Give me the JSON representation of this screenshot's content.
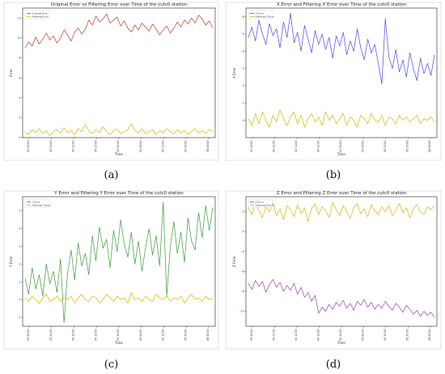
{
  "chart_data": [
    {
      "type": "line",
      "title": "Original Error vs Filtering Error over Time of the cutc0 station",
      "xlabel": "Time",
      "ylabel": "Error",
      "panel_label": "(a)",
      "x_ticks": [
        "03 20:00",
        "03 21:00",
        "04 12:00",
        "04 12:00",
        "04 20:00",
        "05 00:00",
        "05 12:00",
        "05 20:00",
        "06 00:00"
      ],
      "ylim": [
        0,
        13
      ],
      "y_ticks": [
        0,
        2,
        4,
        6,
        8,
        10,
        12
      ],
      "grid": false,
      "legend": "top-left",
      "series": [
        {
          "name": "Original Error",
          "color": "#c0392b",
          "values": [
            9.0,
            9.6,
            9.2,
            10.1,
            9.4,
            9.9,
            10.5,
            9.8,
            10.2,
            9.5,
            10.0,
            10.8,
            10.3,
            9.7,
            10.6,
            11.0,
            10.4,
            10.9,
            11.8,
            11.3,
            12.2,
            11.6,
            11.9,
            12.4,
            11.5,
            11.8,
            12.1,
            11.2,
            11.7,
            11.0,
            10.6,
            11.3,
            10.8,
            11.5,
            11.1,
            10.7,
            11.4,
            10.9,
            10.3,
            10.8,
            11.2,
            10.5,
            11.0,
            11.6,
            11.1,
            11.8,
            11.4,
            12.0,
            11.5,
            12.3,
            11.9,
            11.3,
            11.7,
            11.0
          ]
        },
        {
          "name": "Filtering Error",
          "color": "#d4b800",
          "values": [
            0.6,
            0.3,
            0.8,
            0.5,
            0.9,
            0.4,
            0.7,
            0.2,
            0.6,
            0.8,
            0.4,
            1.0,
            0.5,
            0.7,
            0.3,
            0.9,
            0.6,
            1.3,
            0.7,
            0.4,
            0.8,
            0.5,
            1.1,
            0.6,
            0.3,
            0.7,
            0.9,
            0.4,
            0.6,
            0.8,
            1.4,
            0.7,
            0.5,
            0.9,
            0.4,
            0.6,
            0.8,
            0.3,
            0.7,
            0.5,
            0.9,
            0.6,
            0.4,
            0.8,
            0.5,
            0.7,
            0.3,
            0.6,
            0.9,
            0.5,
            0.7,
            0.4,
            0.8,
            0.6
          ]
        }
      ]
    },
    {
      "type": "line",
      "title": "X Error and Filtering X Error over Time of the cutc0 station",
      "xlabel": "Time",
      "ylabel": "X Error",
      "panel_label": "(b)",
      "x_ticks": [
        "03 20:00",
        "03 21:00",
        "04 12:00",
        "04 12:00",
        "04 20:00",
        "05 00:00",
        "05 12:00",
        "05 20:00",
        "06 00:00"
      ],
      "ylim": [
        -1,
        6.5
      ],
      "y_ticks": [
        0,
        1,
        2,
        3,
        4,
        5,
        6
      ],
      "grid": false,
      "legend": "top-left",
      "series": [
        {
          "name": "X Error",
          "color": "#4a4adf",
          "values": [
            4.8,
            5.4,
            4.6,
            5.8,
            5.0,
            4.4,
            5.6,
            4.9,
            5.3,
            4.2,
            5.7,
            4.8,
            6.2,
            4.5,
            5.1,
            4.0,
            5.5,
            4.7,
            3.9,
            5.2,
            4.4,
            5.0,
            4.1,
            4.8,
            3.6,
            4.9,
            4.3,
            5.1,
            3.8,
            4.6,
            4.0,
            5.3,
            4.2,
            3.5,
            4.7,
            3.9,
            4.4,
            3.3,
            2.1,
            5.9,
            3.7,
            3.0,
            4.1,
            2.8,
            3.5,
            2.5,
            3.9,
            3.0,
            2.3,
            3.6,
            2.7,
            3.3,
            2.6,
            3.8
          ]
        },
        {
          "name": "Filtering X Error",
          "color": "#d4b800",
          "values": [
            0.1,
            -0.3,
            0.4,
            -0.2,
            0.5,
            0.0,
            -0.4,
            0.3,
            -0.1,
            0.6,
            0.1,
            -0.3,
            0.2,
            0.5,
            -0.2,
            0.3,
            -0.4,
            0.1,
            0.4,
            -0.1,
            0.2,
            -0.3,
            0.5,
            0.0,
            0.3,
            -0.2,
            0.1,
            0.4,
            -0.3,
            0.2,
            0.0,
            -0.4,
            0.3,
            0.1,
            -0.2,
            0.4,
            0.0,
            -0.1,
            0.3,
            -0.3,
            0.2,
            0.1,
            -0.2,
            0.3,
            0.0,
            0.2,
            -0.1,
            0.1,
            0.3,
            -0.2,
            0.1,
            0.0,
            0.2,
            -0.1
          ]
        }
      ]
    },
    {
      "type": "line",
      "title": "Y Error and Filtering Y Error over Time of the cutc0 station",
      "xlabel": "Time",
      "ylabel": "Y Error",
      "panel_label": "(c)",
      "x_ticks": [
        "03 20:00",
        "03 21:00",
        "04 12:00",
        "04 12:00",
        "04 20:00",
        "05 00:00",
        "05 12:00",
        "05 20:00",
        "06 00:00"
      ],
      "ylim": [
        -1.5,
        5.8
      ],
      "y_ticks": [
        -1,
        0,
        1,
        2,
        3,
        4,
        5
      ],
      "grid": false,
      "legend": "top-left",
      "series": [
        {
          "name": "Y Error",
          "color": "#3a9a3a",
          "values": [
            1.2,
            0.3,
            1.8,
            0.6,
            1.4,
            0.2,
            2.0,
            0.9,
            1.6,
            0.4,
            2.3,
            -1.3,
            1.5,
            2.8,
            1.1,
            3.2,
            1.9,
            2.6,
            1.4,
            3.6,
            2.2,
            4.1,
            2.9,
            3.4,
            1.8,
            3.9,
            2.7,
            4.5,
            3.1,
            2.4,
            3.8,
            2.0,
            3.3,
            1.6,
            2.9,
            4.0,
            2.5,
            3.6,
            1.9,
            5.5,
            0.2,
            3.0,
            4.4,
            2.6,
            3.8,
            2.1,
            4.6,
            3.3,
            2.8,
            4.9,
            3.5,
            5.3,
            3.9,
            5.2
          ]
        },
        {
          "name": "Filtering Y Error",
          "color": "#d4b800",
          "values": [
            0.1,
            -0.1,
            0.2,
            0.0,
            -0.2,
            0.1,
            0.3,
            -0.1,
            0.0,
            0.2,
            -0.1,
            0.1,
            0.0,
            0.2,
            -0.2,
            0.1,
            0.3,
            0.0,
            -0.1,
            0.2,
            0.1,
            -0.2,
            0.0,
            0.3,
            0.1,
            -0.1,
            0.2,
            0.0,
            0.1,
            -0.2,
            0.4,
            0.0,
            0.1,
            -0.1,
            0.2,
            0.0,
            -0.1,
            0.3,
            0.1,
            0.0,
            0.2,
            -0.1,
            0.1,
            0.0,
            0.2,
            -0.2,
            0.1,
            0.3,
            0.0,
            0.1,
            -0.1,
            0.2,
            0.0,
            0.1
          ]
        }
      ]
    },
    {
      "type": "line",
      "title": "Z Error and Filtering Z Error over Time of the cutc0 station",
      "xlabel": "Time",
      "ylabel": "Z Error",
      "panel_label": "(d)",
      "x_ticks": [
        "03 20:00",
        "03 21:00",
        "04 12:00",
        "04 12:00",
        "04 20:00",
        "05 00:00",
        "05 12:00",
        "05 20:00",
        "06 00:00"
      ],
      "ylim": [
        -11.5,
        1.5
      ],
      "y_ticks": [
        0,
        -2,
        -4,
        -6,
        -8,
        -10
      ],
      "grid": false,
      "legend": "top-left",
      "series": [
        {
          "name": "Z Error",
          "color": "#8e44ad",
          "values": [
            -7.2,
            -7.8,
            -6.9,
            -7.5,
            -7.0,
            -8.1,
            -7.3,
            -6.8,
            -7.6,
            -7.1,
            -8.0,
            -7.4,
            -7.9,
            -7.2,
            -8.3,
            -7.6,
            -8.6,
            -8.1,
            -9.0,
            -8.4,
            -10.2,
            -9.6,
            -10.0,
            -9.3,
            -9.8,
            -9.1,
            -9.5,
            -8.9,
            -9.7,
            -9.2,
            -9.9,
            -9.0,
            -9.4,
            -8.8,
            -9.6,
            -9.1,
            -9.8,
            -9.3,
            -9.7,
            -9.0,
            -9.5,
            -9.9,
            -9.2,
            -9.6,
            -10.1,
            -9.4,
            -9.8,
            -10.3,
            -9.9,
            -10.5,
            -10.0,
            -10.4,
            -10.1,
            -10.6
          ]
        },
        {
          "name": "Filtering Z Error",
          "color": "#d4b800",
          "values": [
            0.4,
            -0.3,
            0.8,
            0.1,
            -0.6,
            0.5,
            0.0,
            0.9,
            -0.4,
            0.3,
            -0.8,
            0.6,
            0.2,
            -0.5,
            0.7,
            -0.2,
            0.4,
            -1.0,
            0.3,
            0.8,
            -0.3,
            0.5,
            0.1,
            -0.6,
            0.9,
            0.2,
            -0.4,
            0.6,
            0.0,
            -0.7,
            0.4,
            0.8,
            -0.2,
            0.3,
            -0.5,
            0.7,
            0.1,
            -0.3,
            0.5,
            0.0,
            0.6,
            -0.4,
            0.2,
            0.8,
            -0.1,
            0.4,
            -0.6,
            0.3,
            0.7,
            0.0,
            -0.3,
            0.5,
            0.2,
            0.6
          ]
        }
      ]
    }
  ]
}
